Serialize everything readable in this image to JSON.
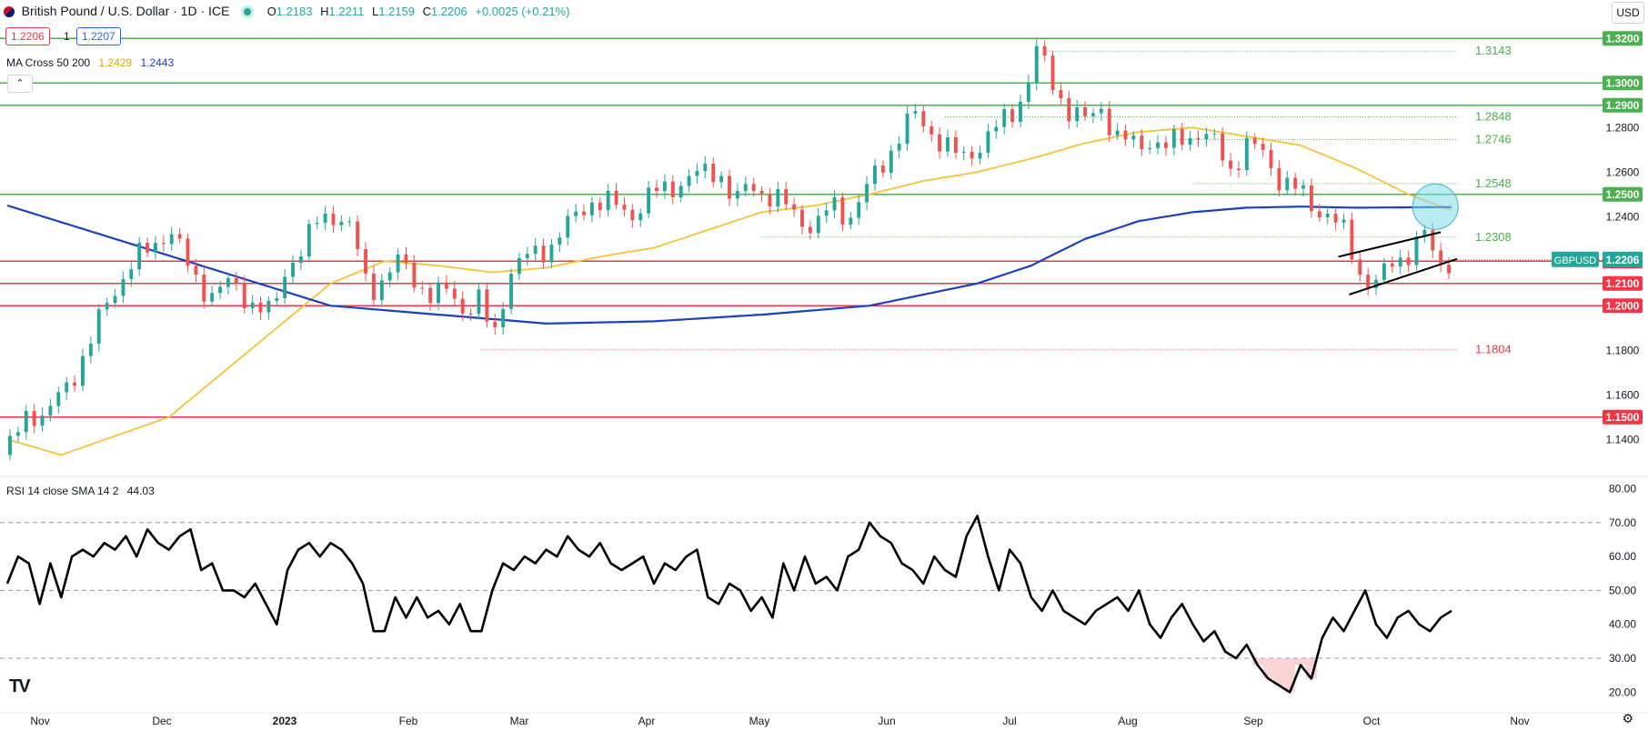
{
  "header": {
    "symbol_title": "British Pound / U.S. Dollar · 1D · ICE",
    "o_label": "O",
    "o_value": "1.2183",
    "h_label": "H",
    "h_value": "1.2211",
    "l_label": "L",
    "l_value": "1.2159",
    "c_label": "C",
    "c_value": "1.2206",
    "change": "+0.0025 (+0.21%)",
    "bid": "1.2206",
    "spread": "1",
    "ask": "1.2207",
    "ma_label": "MA Cross 50 200",
    "ma50_value": "1.2429",
    "ma200_value": "1.2443",
    "rsi_label": "RSI 14 close SMA 14 2",
    "rsi_value": "44.03",
    "currency": "USD",
    "collapse_icon": "chevron-up-icon",
    "logo_text": "TV",
    "settings_icon": "gear-icon"
  },
  "colors": {
    "up": "#26a69a",
    "down": "#ef5350",
    "ma50": "#f7c23a",
    "ma200": "#1e3fbf",
    "support_line": "#4caf50",
    "resistance_line": "#f23645",
    "highlight": "#7fdbe8"
  },
  "chart_data": [
    {
      "type": "candlestick",
      "title": "British Pound / U.S. Dollar · 1D · ICE",
      "ylim": [
        1.125,
        1.325
      ],
      "x_ticks": [
        "Nov",
        "Dec",
        "2023",
        "Feb",
        "Mar",
        "Apr",
        "May",
        "Jun",
        "Jul",
        "Aug",
        "Sep",
        "Oct",
        "Nov"
      ],
      "y_ticks": [
        "1.2800",
        "1.2600",
        "1.2400",
        "1.1800",
        "1.1600",
        "1.1400"
      ],
      "horizontal_levels": [
        {
          "value": 1.32,
          "label": "1.3200",
          "kind": "support"
        },
        {
          "value": 1.3,
          "label": "1.3000",
          "kind": "support"
        },
        {
          "value": 1.29,
          "label": "1.2900",
          "kind": "support"
        },
        {
          "value": 1.25,
          "label": "1.2500",
          "kind": "support"
        },
        {
          "value": 1.22,
          "label": "1.2200",
          "kind": "resistance"
        },
        {
          "value": 1.21,
          "label": "1.2100",
          "kind": "resistance"
        },
        {
          "value": 1.2,
          "label": "1.2000",
          "kind": "resistance"
        },
        {
          "value": 1.15,
          "label": "1.1500",
          "kind": "resistance"
        }
      ],
      "fib_levels": [
        {
          "value": 1.3143,
          "label": "1.3143",
          "kind": "support"
        },
        {
          "value": 1.2848,
          "label": "1.2848",
          "kind": "support"
        },
        {
          "value": 1.2746,
          "label": "1.2746",
          "kind": "support"
        },
        {
          "value": 1.2548,
          "label": "1.2548",
          "kind": "support"
        },
        {
          "value": 1.2308,
          "label": "1.2308",
          "kind": "support"
        },
        {
          "value": 1.1804,
          "label": "1.1804",
          "kind": "resistance"
        }
      ],
      "last_price": {
        "value": 1.2206,
        "label": "1.2206",
        "symbol": "GBPUSD"
      },
      "close_anchors": [
        [
          0,
          1.133
        ],
        [
          8,
          1.155
        ],
        [
          14,
          1.148
        ],
        [
          22,
          1.165
        ],
        [
          30,
          1.18
        ],
        [
          38,
          1.205
        ],
        [
          44,
          1.215
        ],
        [
          52,
          1.225
        ],
        [
          60,
          1.235
        ],
        [
          68,
          1.215
        ],
        [
          76,
          1.205
        ],
        [
          84,
          1.21
        ],
        [
          92,
          1.2
        ],
        [
          98,
          1.195
        ],
        [
          104,
          1.22
        ],
        [
          110,
          1.225
        ],
        [
          116,
          1.24
        ],
        [
          122,
          1.242
        ],
        [
          128,
          1.232
        ],
        [
          134,
          1.208
        ],
        [
          140,
          1.212
        ],
        [
          146,
          1.22
        ],
        [
          152,
          1.212
        ],
        [
          158,
          1.202
        ],
        [
          164,
          1.208
        ],
        [
          170,
          1.198
        ],
        [
          176,
          1.202
        ],
        [
          180,
          1.183
        ],
        [
          186,
          1.215
        ],
        [
          194,
          1.222
        ],
        [
          202,
          1.228
        ],
        [
          210,
          1.238
        ],
        [
          216,
          1.248
        ],
        [
          224,
          1.245
        ],
        [
          232,
          1.242
        ],
        [
          240,
          1.25
        ],
        [
          248,
          1.255
        ],
        [
          256,
          1.258
        ],
        [
          264,
          1.262
        ],
        [
          270,
          1.245
        ],
        [
          276,
          1.255
        ],
        [
          282,
          1.25
        ],
        [
          288,
          1.245
        ],
        [
          294,
          1.24
        ],
        [
          300,
          1.235
        ],
        [
          306,
          1.245
        ],
        [
          312,
          1.24
        ],
        [
          318,
          1.25
        ],
        [
          324,
          1.262
        ],
        [
          330,
          1.275
        ],
        [
          336,
          1.285
        ],
        [
          342,
          1.28
        ],
        [
          348,
          1.272
        ],
        [
          354,
          1.265
        ],
        [
          360,
          1.272
        ],
        [
          366,
          1.278
        ],
        [
          372,
          1.285
        ],
        [
          378,
          1.298
        ],
        [
          382,
          1.314
        ],
        [
          388,
          1.3
        ],
        [
          394,
          1.288
        ],
        [
          400,
          1.282
        ],
        [
          406,
          1.29
        ],
        [
          412,
          1.275
        ],
        [
          418,
          1.272
        ],
        [
          424,
          1.275
        ],
        [
          430,
          1.27
        ],
        [
          436,
          1.276
        ],
        [
          442,
          1.278
        ],
        [
          448,
          1.272
        ],
        [
          454,
          1.262
        ],
        [
          460,
          1.272
        ],
        [
          466,
          1.268
        ],
        [
          472,
          1.258
        ],
        [
          478,
          1.252
        ],
        [
          484,
          1.245
        ],
        [
          490,
          1.242
        ],
        [
          496,
          1.232
        ],
        [
          502,
          1.215
        ],
        [
          508,
          1.21
        ],
        [
          514,
          1.218
        ],
        [
          520,
          1.225
        ],
        [
          526,
          1.232
        ],
        [
          530,
          1.218
        ],
        [
          536,
          1.221
        ]
      ],
      "ma50_anchors": [
        [
          0,
          1.14
        ],
        [
          20,
          1.133
        ],
        [
          60,
          1.15
        ],
        [
          80,
          1.17
        ],
        [
          100,
          1.19
        ],
        [
          120,
          1.21
        ],
        [
          140,
          1.22
        ],
        [
          160,
          1.218
        ],
        [
          180,
          1.215
        ],
        [
          200,
          1.217
        ],
        [
          220,
          1.222
        ],
        [
          240,
          1.226
        ],
        [
          260,
          1.234
        ],
        [
          280,
          1.242
        ],
        [
          300,
          1.245
        ],
        [
          320,
          1.25
        ],
        [
          340,
          1.256
        ],
        [
          360,
          1.26
        ],
        [
          380,
          1.266
        ],
        [
          400,
          1.273
        ],
        [
          420,
          1.278
        ],
        [
          440,
          1.28
        ],
        [
          460,
          1.276
        ],
        [
          480,
          1.272
        ],
        [
          500,
          1.262
        ],
        [
          520,
          1.25
        ],
        [
          536,
          1.2429
        ]
      ],
      "ma200_anchors": [
        [
          0,
          1.245
        ],
        [
          40,
          1.23
        ],
        [
          80,
          1.215
        ],
        [
          120,
          1.2
        ],
        [
          160,
          1.196
        ],
        [
          200,
          1.192
        ],
        [
          240,
          1.193
        ],
        [
          280,
          1.196
        ],
        [
          320,
          1.2
        ],
        [
          360,
          1.21
        ],
        [
          380,
          1.218
        ],
        [
          400,
          1.23
        ],
        [
          420,
          1.238
        ],
        [
          440,
          1.242
        ],
        [
          460,
          1.244
        ],
        [
          480,
          1.2445
        ],
        [
          500,
          1.244
        ],
        [
          536,
          1.2443
        ]
      ],
      "channel": {
        "upper": [
          [
            494,
            1.222
          ],
          [
            532,
            1.233
          ]
        ],
        "lower": [
          [
            498,
            1.205
          ],
          [
            538,
            1.221
          ]
        ]
      }
    },
    {
      "type": "line",
      "title": "RSI 14 close SMA 14 2",
      "ylim": [
        15,
        82
      ],
      "y_ticks": [
        "80.00",
        "70.00",
        "60.00",
        "50.00",
        "40.00",
        "30.00",
        "20.00"
      ],
      "bands": [
        70,
        50,
        30
      ],
      "x": [
        0,
        4,
        8,
        12,
        16,
        20,
        24,
        28,
        32,
        36,
        40,
        44,
        48,
        52,
        56,
        60,
        64,
        68,
        72,
        76,
        80,
        84,
        88,
        92,
        96,
        100,
        104,
        108,
        112,
        116,
        120,
        124,
        128,
        132,
        136,
        140,
        144,
        148,
        152,
        156,
        160,
        164,
        168,
        172,
        176,
        180,
        184,
        188,
        192,
        196,
        200,
        204,
        208,
        212,
        216,
        220,
        224,
        228,
        232,
        236,
        240,
        244,
        248,
        252,
        256,
        260,
        264,
        268,
        272,
        276,
        280,
        284,
        288,
        292,
        296,
        300,
        304,
        308,
        312,
        316,
        320,
        324,
        328,
        332,
        336,
        340,
        344,
        348,
        352,
        356,
        360,
        364,
        368,
        372,
        376,
        380,
        384,
        388,
        392,
        396,
        400,
        404,
        408,
        412,
        416,
        420,
        424,
        428,
        432,
        436,
        440,
        444,
        448,
        452,
        456,
        460,
        464,
        468,
        472,
        476,
        480,
        484,
        488,
        492,
        496,
        500,
        504,
        508,
        512,
        516,
        520,
        524,
        528,
        532,
        536
      ],
      "values": [
        52,
        60,
        58,
        46,
        58,
        48,
        60,
        62,
        60,
        64,
        62,
        66,
        60,
        68,
        64,
        62,
        66,
        68,
        56,
        58,
        50,
        50,
        48,
        52,
        46,
        40,
        56,
        62,
        64,
        60,
        64,
        62,
        58,
        52,
        38,
        38,
        48,
        42,
        48,
        42,
        44,
        40,
        46,
        38,
        38,
        50,
        58,
        56,
        60,
        58,
        62,
        60,
        66,
        62,
        60,
        64,
        58,
        56,
        58,
        60,
        52,
        58,
        56,
        60,
        62,
        48,
        46,
        52,
        50,
        44,
        48,
        42,
        58,
        50,
        60,
        52,
        54,
        50,
        60,
        62,
        70,
        66,
        64,
        58,
        56,
        52,
        60,
        56,
        54,
        66,
        72,
        60,
        50,
        62,
        58,
        48,
        44,
        50,
        44,
        42,
        40,
        44,
        46,
        48,
        44,
        50,
        40,
        36,
        42,
        46,
        40,
        35,
        38,
        32,
        30,
        34,
        28,
        24,
        22,
        20,
        28,
        24,
        36,
        42,
        38,
        44,
        50,
        40,
        36,
        42,
        44,
        40,
        38,
        42,
        44
      ]
    }
  ]
}
